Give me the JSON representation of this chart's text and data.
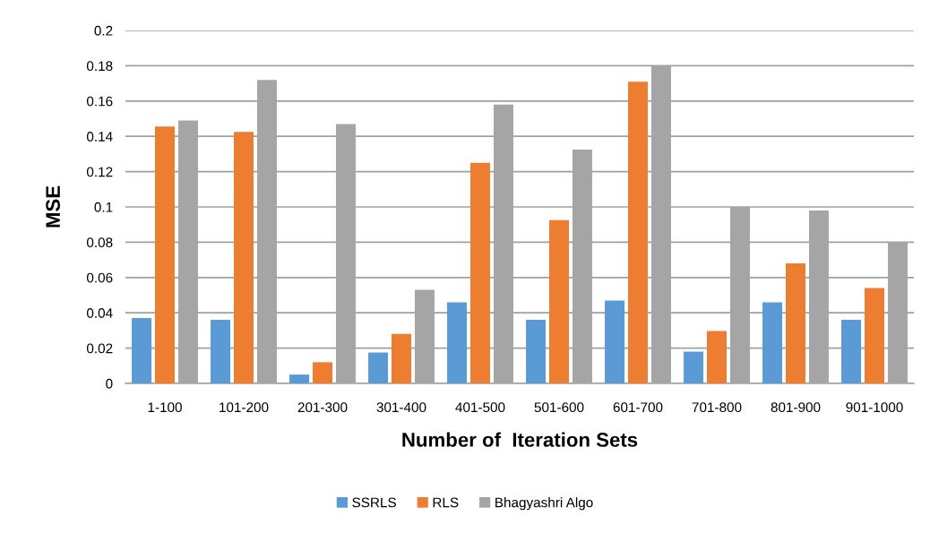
{
  "chart_data": {
    "type": "bar",
    "xlabel": "Number of  Iteration Sets",
    "ylabel": "MSE",
    "categories": [
      "1-100",
      "101-200",
      "201-300",
      "301-400",
      "401-500",
      "501-600",
      "601-700",
      "701-800",
      "801-900",
      "901-1000"
    ],
    "series": [
      {
        "name": "SSRLS",
        "color": "#5b9bd5",
        "values": [
          0.037,
          0.036,
          0.005,
          0.0175,
          0.046,
          0.036,
          0.047,
          0.018,
          0.046,
          0.036
        ]
      },
      {
        "name": "RLS",
        "color": "#ed7d31",
        "values": [
          0.1455,
          0.1425,
          0.012,
          0.028,
          0.125,
          0.0925,
          0.171,
          0.0297,
          0.068,
          0.054
        ]
      },
      {
        "name": "Bhagyashri Algo",
        "color": "#a5a5a5",
        "values": [
          0.149,
          0.172,
          0.147,
          0.053,
          0.158,
          0.1325,
          0.18,
          0.1,
          0.098,
          0.08
        ]
      }
    ],
    "ylim": [
      0,
      0.2
    ],
    "yticks": [
      0,
      0.02,
      0.04,
      0.06,
      0.08,
      0.1,
      0.12,
      0.14,
      0.16,
      0.18,
      0.2
    ],
    "grid": "y",
    "legend": "bottom"
  }
}
